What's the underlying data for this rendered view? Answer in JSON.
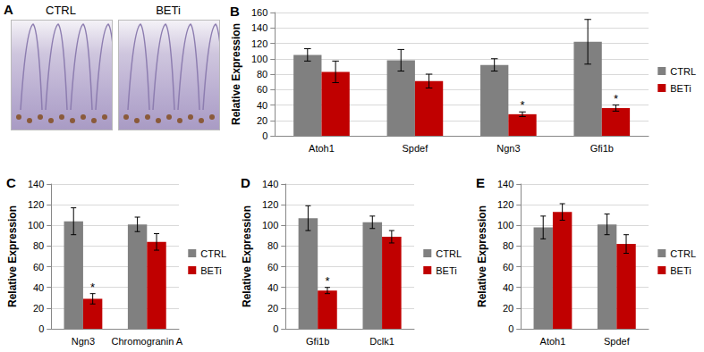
{
  "panel_a": {
    "title": "A",
    "images": [
      "CTRL",
      "BETi"
    ]
  },
  "chart_data": [
    {
      "type": "bar",
      "title": "B",
      "y_label": "Relative Expression",
      "categories": [
        "Atoh1",
        "Spdef",
        "Ngn3",
        "Gfi1b"
      ],
      "ylim": [
        0,
        160
      ],
      "yticks": [
        0,
        20,
        40,
        60,
        80,
        100,
        120,
        140,
        160
      ],
      "grid": true,
      "legend": "right",
      "series": [
        {
          "name": "CTRL",
          "color": "#808080",
          "values": [
            105,
            98,
            92,
            122
          ],
          "errors": [
            8,
            14,
            8,
            29
          ],
          "annotations": [
            null,
            null,
            null,
            null
          ]
        },
        {
          "name": "BETi",
          "color": "#c00000",
          "values": [
            83,
            71,
            28,
            36
          ],
          "errors": [
            14,
            9,
            3,
            4
          ],
          "annotations": [
            null,
            null,
            "*",
            "*"
          ]
        }
      ]
    },
    {
      "type": "bar",
      "title": "C",
      "y_label": "Relative Expression",
      "categories": [
        "Ngn3",
        "Chromogranin A"
      ],
      "ylim": [
        0,
        140
      ],
      "yticks": [
        0,
        20,
        40,
        60,
        80,
        100,
        120,
        140
      ],
      "grid": true,
      "legend": "right",
      "series": [
        {
          "name": "CTRL",
          "color": "#808080",
          "values": [
            104,
            101
          ],
          "errors": [
            13,
            7
          ],
          "annotations": [
            null,
            null
          ]
        },
        {
          "name": "BETi",
          "color": "#c00000",
          "values": [
            29,
            84
          ],
          "errors": [
            5,
            8
          ],
          "annotations": [
            "*",
            null
          ]
        }
      ]
    },
    {
      "type": "bar",
      "title": "D",
      "y_label": "Relative Expression",
      "categories": [
        "Gfi1b",
        "Dclk1"
      ],
      "ylim": [
        0,
        140
      ],
      "yticks": [
        0,
        20,
        40,
        60,
        80,
        100,
        120,
        140
      ],
      "grid": true,
      "legend": "right",
      "series": [
        {
          "name": "CTRL",
          "color": "#808080",
          "values": [
            107,
            103
          ],
          "errors": [
            12,
            6
          ],
          "annotations": [
            null,
            null
          ]
        },
        {
          "name": "BETi",
          "color": "#c00000",
          "values": [
            37,
            89
          ],
          "errors": [
            3,
            6
          ],
          "annotations": [
            "*",
            null
          ]
        }
      ]
    },
    {
      "type": "bar",
      "title": "E",
      "y_label": "Relative Expression",
      "categories": [
        "Atoh1",
        "Spdef"
      ],
      "ylim": [
        0,
        140
      ],
      "yticks": [
        0,
        20,
        40,
        60,
        80,
        100,
        120,
        140
      ],
      "grid": true,
      "legend": "right",
      "series": [
        {
          "name": "CTRL",
          "color": "#808080",
          "values": [
            98,
            101
          ],
          "errors": [
            11,
            10
          ],
          "annotations": [
            null,
            null
          ]
        },
        {
          "name": "BETi",
          "color": "#c00000",
          "values": [
            113,
            82
          ],
          "errors": [
            8,
            9
          ],
          "annotations": [
            null,
            null
          ]
        }
      ]
    }
  ]
}
